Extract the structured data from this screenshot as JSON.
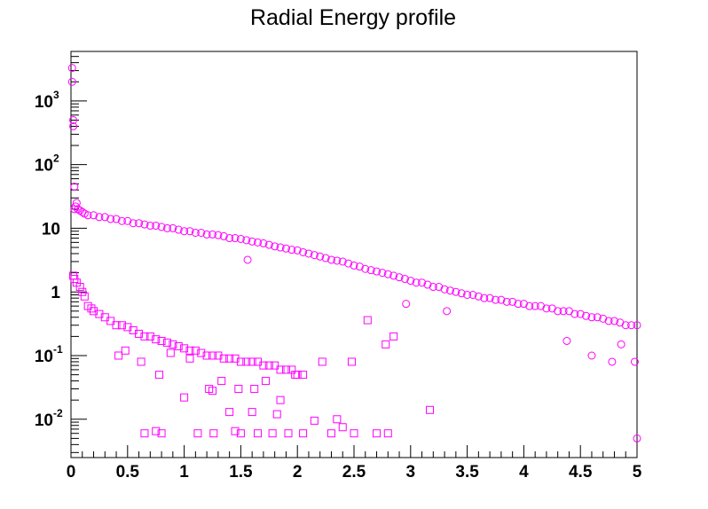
{
  "chart_data": {
    "type": "scatter",
    "title": "Radial Energy profile",
    "xlabel": "",
    "ylabel": "",
    "xlim": [
      0,
      5
    ],
    "ylim": [
      0.0025,
      6000
    ],
    "y_scale": "log",
    "grid": false,
    "marker_color": "#ff00ff",
    "x_ticks": [
      {
        "v": 0,
        "label": "0"
      },
      {
        "v": 0.5,
        "label": "0.5"
      },
      {
        "v": 1,
        "label": "1"
      },
      {
        "v": 1.5,
        "label": "1.5"
      },
      {
        "v": 2,
        "label": "2"
      },
      {
        "v": 2.5,
        "label": "2.5"
      },
      {
        "v": 3,
        "label": "3"
      },
      {
        "v": 3.5,
        "label": "3.5"
      },
      {
        "v": 4,
        "label": "4"
      },
      {
        "v": 4.5,
        "label": "4.5"
      },
      {
        "v": 5,
        "label": "5"
      }
    ],
    "y_ticks": [
      {
        "v": 0.01,
        "base": "10",
        "exp": "-2"
      },
      {
        "v": 0.1,
        "base": "10",
        "exp": "-1"
      },
      {
        "v": 1,
        "base": "1",
        "exp": ""
      },
      {
        "v": 10,
        "base": "10",
        "exp": ""
      },
      {
        "v": 100,
        "base": "10",
        "exp": "2"
      },
      {
        "v": 1000,
        "base": "10",
        "exp": "3"
      }
    ],
    "series": [
      {
        "marker": "circle",
        "x": [
          0.01,
          0.01,
          0.02,
          0.02,
          0.03,
          0.03,
          0.04,
          0.05,
          0.06,
          0.08,
          0.1,
          0.12,
          0.15,
          0.2,
          0.25,
          0.3,
          0.35,
          0.4,
          0.45,
          0.5,
          0.55,
          0.6,
          0.65,
          0.7,
          0.75,
          0.8,
          0.85,
          0.9,
          0.95,
          1.0,
          1.05,
          1.1,
          1.15,
          1.2,
          1.25,
          1.3,
          1.35,
          1.4,
          1.45,
          1.5,
          1.55,
          1.6,
          1.65,
          1.7,
          1.75,
          1.8,
          1.85,
          1.9,
          1.95,
          2.0,
          2.05,
          2.1,
          2.15,
          2.2,
          2.25,
          2.3,
          2.35,
          2.4,
          2.45,
          2.5,
          2.55,
          2.6,
          2.65,
          2.7,
          2.75,
          2.8,
          2.85,
          2.9,
          2.95,
          3.0,
          3.05,
          3.1,
          3.15,
          3.2,
          3.25,
          3.3,
          3.35,
          3.4,
          3.45,
          3.5,
          3.55,
          3.6,
          3.65,
          3.7,
          3.75,
          3.8,
          3.85,
          3.9,
          3.95,
          4.0,
          4.05,
          4.1,
          4.15,
          4.2,
          4.25,
          4.3,
          4.35,
          4.4,
          4.45,
          4.5,
          4.55,
          4.6,
          4.65,
          4.7,
          4.75,
          4.8,
          4.85,
          4.9,
          4.95,
          5.0,
          1.56,
          2.96,
          3.32,
          4.38,
          4.6,
          4.78,
          4.86,
          4.98,
          5.0
        ],
        "y": [
          3300,
          2000,
          400,
          500,
          45,
          20,
          22,
          25,
          20,
          19,
          18,
          17,
          16,
          16,
          15,
          15,
          14,
          14,
          13,
          13,
          12,
          12,
          11.5,
          11,
          11,
          10.5,
          10,
          10,
          9.5,
          9,
          9,
          8.5,
          8.5,
          8,
          8,
          7.8,
          7.5,
          7,
          7,
          6.8,
          6.5,
          6.2,
          6,
          5.8,
          5.5,
          5.2,
          5,
          4.8,
          4.6,
          4.5,
          4.2,
          4,
          3.8,
          3.6,
          3.4,
          3.2,
          3.1,
          3,
          2.8,
          2.6,
          2.5,
          2.3,
          2.2,
          2.1,
          2,
          1.9,
          1.8,
          1.7,
          1.6,
          1.5,
          1.4,
          1.4,
          1.3,
          1.2,
          1.2,
          1.1,
          1.05,
          1.0,
          0.95,
          0.9,
          0.9,
          0.85,
          0.8,
          0.8,
          0.75,
          0.75,
          0.7,
          0.7,
          0.65,
          0.65,
          0.6,
          0.6,
          0.6,
          0.55,
          0.55,
          0.5,
          0.5,
          0.5,
          0.45,
          0.45,
          0.42,
          0.4,
          0.4,
          0.38,
          0.35,
          0.35,
          0.33,
          0.3,
          0.3,
          0.3,
          3.2,
          0.65,
          0.5,
          0.17,
          0.1,
          0.08,
          0.15,
          0.08,
          0.005
        ]
      },
      {
        "marker": "square",
        "x": [
          0.02,
          0.03,
          0.05,
          0.08,
          0.1,
          0.12,
          0.15,
          0.18,
          0.2,
          0.25,
          0.3,
          0.35,
          0.4,
          0.45,
          0.5,
          0.55,
          0.6,
          0.65,
          0.7,
          0.75,
          0.8,
          0.85,
          0.9,
          0.95,
          1.0,
          1.05,
          1.1,
          1.15,
          1.2,
          1.25,
          1.3,
          1.35,
          1.4,
          1.45,
          1.5,
          1.55,
          1.6,
          1.65,
          1.7,
          1.75,
          1.8,
          1.85,
          1.9,
          1.95,
          2.0,
          2.05,
          0.42,
          0.48,
          0.62,
          0.78,
          0.88,
          1.05,
          1.22,
          1.33,
          1.48,
          1.62,
          1.72,
          1.85,
          1.98,
          2.22,
          2.48,
          2.62,
          2.78,
          2.85,
          0.65,
          0.75,
          0.8,
          1.12,
          1.26,
          1.45,
          1.5,
          1.65,
          1.78,
          1.92,
          2.05,
          2.3,
          2.4,
          2.5,
          2.7,
          3.17,
          1.0,
          1.25,
          1.4,
          1.6,
          1.82,
          2.15,
          2.35,
          2.8
        ],
        "y": [
          1.8,
          1.6,
          1.4,
          1.2,
          1.0,
          0.85,
          0.6,
          0.55,
          0.5,
          0.45,
          0.4,
          0.35,
          0.3,
          0.3,
          0.28,
          0.25,
          0.22,
          0.2,
          0.2,
          0.18,
          0.17,
          0.16,
          0.15,
          0.14,
          0.13,
          0.12,
          0.12,
          0.11,
          0.1,
          0.1,
          0.1,
          0.09,
          0.09,
          0.09,
          0.08,
          0.08,
          0.08,
          0.08,
          0.07,
          0.07,
          0.07,
          0.06,
          0.06,
          0.06,
          0.05,
          0.05,
          0.1,
          0.12,
          0.08,
          0.05,
          0.11,
          0.09,
          0.03,
          0.04,
          0.03,
          0.03,
          0.04,
          0.02,
          0.05,
          0.08,
          0.08,
          0.36,
          0.15,
          0.2,
          0.006,
          0.0065,
          0.006,
          0.006,
          0.006,
          0.0065,
          0.006,
          0.006,
          0.006,
          0.006,
          0.006,
          0.006,
          0.0075,
          0.006,
          0.006,
          0.014,
          0.022,
          0.028,
          0.013,
          0.013,
          0.012,
          0.0095,
          0.01,
          0.006
        ]
      }
    ]
  }
}
